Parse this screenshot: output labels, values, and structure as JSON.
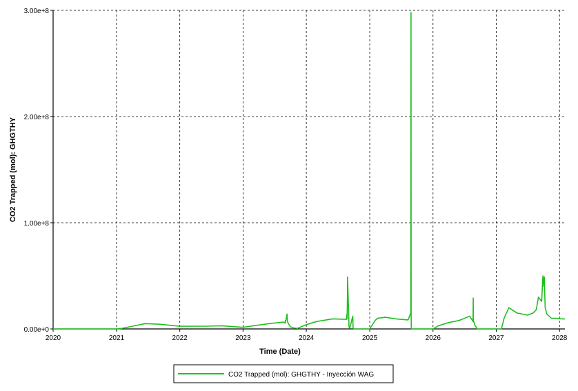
{
  "chart_data": {
    "type": "line",
    "title": "",
    "xlabel": "Time (Date)",
    "ylabel": "CO2 Trapped (mol): GHGTHY",
    "x_ticks": [
      "2020",
      "2021",
      "2022",
      "2023",
      "2024",
      "2025",
      "2026",
      "2027",
      "2028"
    ],
    "y_ticks": [
      "0.00e+0",
      "1.00e+8",
      "2.00e+8",
      "3.00e+8"
    ],
    "xlim": [
      "2020-01-01",
      "2028-02-01"
    ],
    "ylim": [
      0,
      300000000
    ],
    "grid": true,
    "legend_position": "bottom-center",
    "series": [
      {
        "name": "CO2 Trapped (mol): GHGTHY - Inyección WAG",
        "color": "#1fbf1f",
        "x": [
          "2020-01-01",
          "2021-01-01",
          "2021-02-01",
          "2021-04-01",
          "2021-06-15",
          "2021-09-01",
          "2022-01-01",
          "2022-06-01",
          "2022-09-01",
          "2022-11-01",
          "2023-01-01",
          "2023-03-01",
          "2023-06-01",
          "2023-08-20",
          "2023-09-01",
          "2023-09-02",
          "2023-09-03",
          "2023-09-12",
          "2023-09-14",
          "2023-09-20",
          "2023-10-01",
          "2023-10-20",
          "2023-11-10",
          "2024-01-01",
          "2024-03-01",
          "2024-06-01",
          "2024-08-20",
          "2024-08-22",
          "2024-08-23",
          "2024-08-25",
          "2024-08-26",
          "2024-09-02",
          "2024-09-03",
          "2024-09-05",
          "2024-09-08",
          "2024-09-25",
          "2024-09-26",
          "2024-09-27",
          "2024-09-28",
          "2024-09-29",
          "2024-10-01",
          "2024-11-01",
          "2024-12-31",
          "2025-01-01",
          "2025-02-01",
          "2025-02-15",
          "2025-04-01",
          "2025-06-01",
          "2025-08-10",
          "2025-08-26",
          "2025-08-27",
          "2025-08-28",
          "2025-08-29",
          "2025-08-30",
          "2025-09-01",
          "2025-09-15",
          "2025-12-31",
          "2026-01-01",
          "2026-02-01",
          "2026-04-01",
          "2026-06-01",
          "2026-08-01",
          "2026-08-20",
          "2026-08-21",
          "2026-08-22",
          "2026-09-01",
          "2026-09-10",
          "2026-09-11",
          "2027-01-01",
          "2027-01-31",
          "2027-02-15",
          "2027-03-15",
          "2027-05-01",
          "2027-07-01",
          "2027-08-01",
          "2027-08-20",
          "2027-09-01",
          "2027-09-20",
          "2027-09-27",
          "2027-09-28",
          "2027-10-05",
          "2027-10-10",
          "2027-10-20",
          "2027-11-15",
          "2027-12-15",
          "2028-01-10",
          "2028-02-01"
        ],
        "y": [
          0,
          0,
          500000,
          2500000,
          5000000,
          4500000,
          2500000,
          2600000,
          3000000,
          2200000,
          1500000,
          3000000,
          5000000,
          6500000,
          5500000,
          8000000,
          6500000,
          14000000,
          7000000,
          5000000,
          2000000,
          1000000,
          500000,
          4000000,
          7000000,
          9500000,
          9000000,
          14000000,
          9500000,
          30000000,
          49000000,
          10000000,
          3000000,
          1000000,
          800000,
          12000000,
          8000000,
          1000000,
          500000,
          300000,
          0,
          0,
          0,
          0,
          8000000,
          10000000,
          11000000,
          9500000,
          8500000,
          15000000,
          298000000,
          10000000,
          0,
          0,
          0,
          0,
          0,
          0,
          3000000,
          6000000,
          8000000,
          12000000,
          7000000,
          29000000,
          8000000,
          3000000,
          1000000,
          0,
          0,
          0,
          10000000,
          20000000,
          15000000,
          13000000,
          15000000,
          18000000,
          30000000,
          26000000,
          50000000,
          40000000,
          49000000,
          20000000,
          14000000,
          10000000,
          10000000,
          9500000,
          9500000
        ]
      }
    ]
  }
}
